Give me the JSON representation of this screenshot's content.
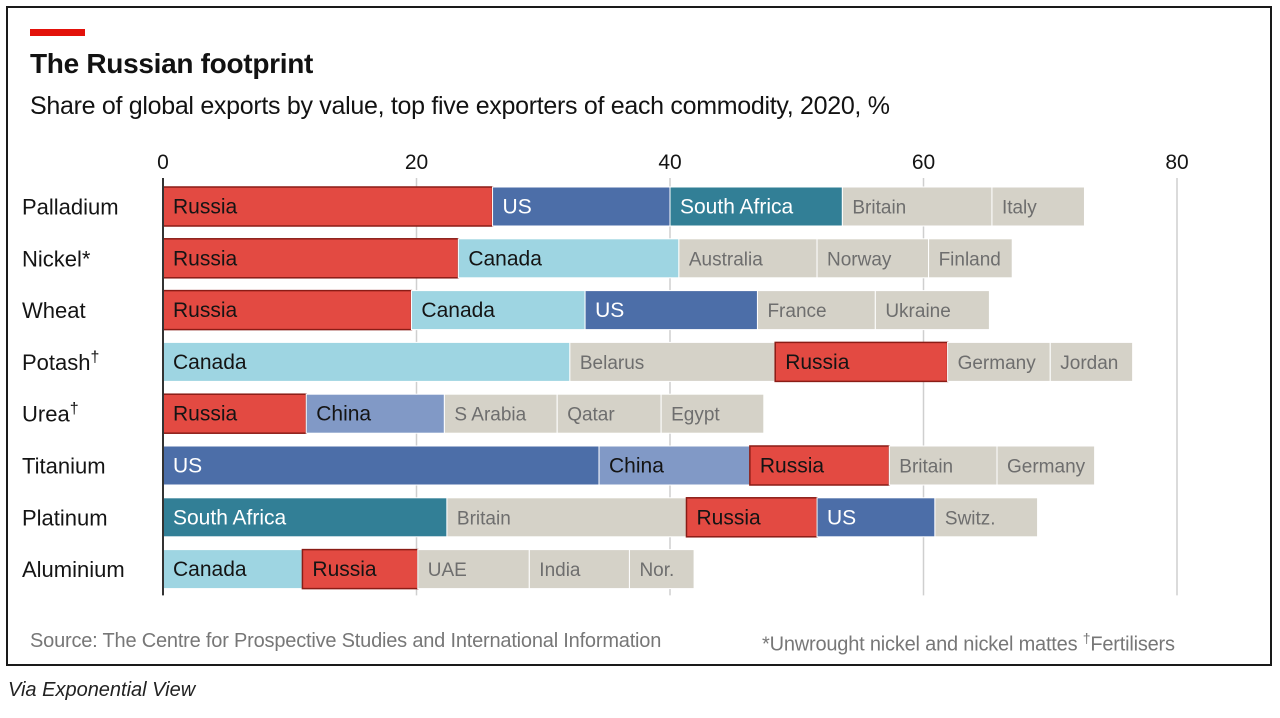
{
  "header": {
    "title": "The Russian footprint",
    "subtitle": "Share of global exports by value, top five exporters of each commodity, 2020, %"
  },
  "footer": {
    "source": "Source: The Centre for Prospective Studies and International Information",
    "footnote_nickel": "*Unwrought nickel and nickel mattes",
    "footnote_dagger_mark": "†",
    "footnote_fertilisers": "Fertilisers"
  },
  "credit": "Via Exponential View",
  "colors": {
    "accent": "#e3120b",
    "Russia": "#e34a42",
    "US": "#4c6ea8",
    "South Africa": "#327f96",
    "Canada": "#9ed5e2",
    "China": "#8199c6",
    "other": "#d5d2c8",
    "grid": "#cfcfcf",
    "axis": "#333333",
    "dark_text": "#141414",
    "light_text": "#ffffff",
    "muted_text": "#6e6e6e"
  },
  "chart_data": {
    "type": "bar",
    "orientation": "horizontal",
    "stacked": true,
    "title": "The Russian footprint",
    "subtitle": "Share of global exports by value, top five exporters of each commodity, 2020, %",
    "xlim": [
      0,
      80
    ],
    "xticks": [
      0,
      20,
      40,
      60,
      80
    ],
    "grid": true,
    "categories": [
      "Palladium",
      "Nickel",
      "Wheat",
      "Potash",
      "Urea",
      "Titanium",
      "Platinum",
      "Aluminium"
    ],
    "category_marks": [
      "",
      "*",
      "",
      "†",
      "†",
      "",
      "",
      ""
    ],
    "rows": [
      {
        "commodity": "Palladium",
        "segments": [
          {
            "country": "Russia",
            "value": 26
          },
          {
            "country": "US",
            "value": 14
          },
          {
            "country": "South Africa",
            "value": 13.6
          },
          {
            "country": "Britain",
            "value": 11.8
          },
          {
            "country": "Italy",
            "value": 7.3
          }
        ]
      },
      {
        "commodity": "Nickel",
        "segments": [
          {
            "country": "Russia",
            "value": 23.3
          },
          {
            "country": "Canada",
            "value": 17.4
          },
          {
            "country": "Australia",
            "value": 10.9
          },
          {
            "country": "Norway",
            "value": 8.8
          },
          {
            "country": "Finland",
            "value": 6.6
          }
        ]
      },
      {
        "commodity": "Wheat",
        "segments": [
          {
            "country": "Russia",
            "value": 19.6
          },
          {
            "country": "Canada",
            "value": 13.7
          },
          {
            "country": "US",
            "value": 13.6
          },
          {
            "country": "France",
            "value": 9.3
          },
          {
            "country": "Ukraine",
            "value": 9
          }
        ]
      },
      {
        "commodity": "Potash",
        "segments": [
          {
            "country": "Canada",
            "value": 32.1
          },
          {
            "country": "Belarus",
            "value": 16.2
          },
          {
            "country": "Russia",
            "value": 13.6
          },
          {
            "country": "Germany",
            "value": 8.1
          },
          {
            "country": "Jordan",
            "value": 6.5
          }
        ]
      },
      {
        "commodity": "Urea",
        "segments": [
          {
            "country": "Russia",
            "value": 11.3
          },
          {
            "country": "China",
            "value": 10.9
          },
          {
            "country": "S Arabia",
            "value": 8.9
          },
          {
            "country": "Qatar",
            "value": 8.2
          },
          {
            "country": "Egypt",
            "value": 8.1
          }
        ]
      },
      {
        "commodity": "Titanium",
        "segments": [
          {
            "country": "US",
            "value": 34.4
          },
          {
            "country": "China",
            "value": 11.9
          },
          {
            "country": "Russia",
            "value": 11
          },
          {
            "country": "Britain",
            "value": 8.5
          },
          {
            "country": "Germany",
            "value": 7.7
          }
        ]
      },
      {
        "commodity": "Platinum",
        "segments": [
          {
            "country": "South Africa",
            "value": 22.4
          },
          {
            "country": "Britain",
            "value": 18.9
          },
          {
            "country": "Russia",
            "value": 10.3
          },
          {
            "country": "US",
            "value": 9.3
          },
          {
            "country": "Switz.",
            "value": 8.1
          }
        ]
      },
      {
        "commodity": "Aluminium",
        "segments": [
          {
            "country": "Canada",
            "value": 11
          },
          {
            "country": "Russia",
            "value": 9.1
          },
          {
            "country": "UAE",
            "value": 8.8
          },
          {
            "country": "India",
            "value": 7.9
          },
          {
            "country": "Nor.",
            "value": 5.1
          }
        ]
      }
    ]
  }
}
